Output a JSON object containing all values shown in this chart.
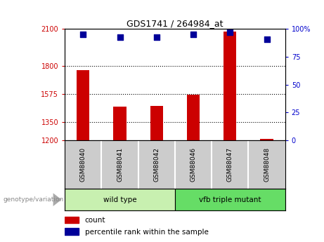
{
  "title": "GDS1741 / 264984_at",
  "samples": [
    "GSM88040",
    "GSM88041",
    "GSM88042",
    "GSM88046",
    "GSM88047",
    "GSM88048"
  ],
  "counts": [
    1770,
    1470,
    1480,
    1570,
    2080,
    1210
  ],
  "percentile_ranks": [
    95,
    93,
    93,
    95,
    97,
    91
  ],
  "ylim_left": [
    1200,
    2100
  ],
  "ylim_right": [
    0,
    100
  ],
  "yticks_left": [
    1200,
    1350,
    1575,
    1800,
    2100
  ],
  "yticks_right": [
    0,
    25,
    50,
    75,
    100
  ],
  "ytick_labels_left": [
    "1200",
    "1350",
    "1575",
    "1800",
    "2100"
  ],
  "ytick_labels_right": [
    "0",
    "25",
    "50",
    "75",
    "100%"
  ],
  "hlines": [
    1350,
    1575,
    1800
  ],
  "groups": [
    {
      "label": "wild type",
      "indices": [
        0,
        1,
        2
      ],
      "color": "#c8f0b0"
    },
    {
      "label": "vfb triple mutant",
      "indices": [
        3,
        4,
        5
      ],
      "color": "#66dd66"
    }
  ],
  "bar_color": "#CC0000",
  "dot_color": "#000099",
  "tick_color_left": "#CC0000",
  "tick_color_right": "#0000CC",
  "background_color": "#ffffff",
  "plot_bg_color": "#ffffff",
  "sample_box_color": "#cccccc",
  "genotype_label": "genotype/variation",
  "legend_count_label": "count",
  "legend_percentile_label": "percentile rank within the sample",
  "bar_width": 0.35,
  "dot_size": 40
}
